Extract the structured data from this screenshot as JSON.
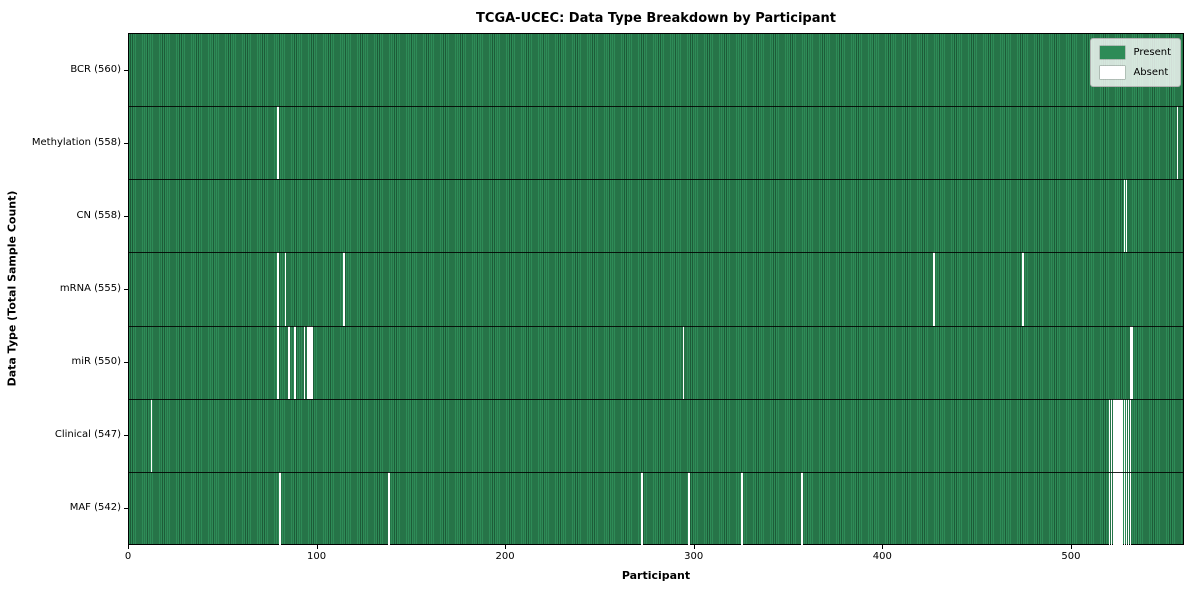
{
  "title": "TCGA-UCEC: Data Type Breakdown by Participant",
  "xlabel": "Participant",
  "ylabel": "Data Type (Total Sample Count)",
  "legend": [
    {
      "label": "Present",
      "color": "#2e8b57"
    },
    {
      "label": "Absent",
      "color": "#ffffff"
    }
  ],
  "chart_data": {
    "type": "heatmap",
    "title": "TCGA-UCEC: Data Type Breakdown by Participant",
    "xlabel": "Participant",
    "ylabel": "Data Type (Total Sample Count)",
    "legend_position": "upper right",
    "grid": false,
    "n_participants": 560,
    "x_ticks": [
      0,
      100,
      200,
      300,
      400,
      500
    ],
    "x_range": [
      0,
      560
    ],
    "colors": {
      "present": "#2e8b57",
      "present_edge": "#1d5c38",
      "absent": "#ffffff"
    },
    "categories": [
      "BCR (560)",
      "Methylation (558)",
      "CN (558)",
      "mRNA (555)",
      "miR (550)",
      "Clinical (547)",
      "MAF (542)"
    ],
    "rows": [
      {
        "label": "BCR (560)",
        "data_type": "BCR",
        "present_count": 560,
        "absent_participants": []
      },
      {
        "label": "Methylation (558)",
        "data_type": "Methylation",
        "present_count": 558,
        "absent_participants": [
          79,
          556
        ]
      },
      {
        "label": "CN (558)",
        "data_type": "CN",
        "present_count": 558,
        "absent_participants": [
          528,
          529
        ]
      },
      {
        "label": "mRNA (555)",
        "data_type": "mRNA",
        "present_count": 555,
        "absent_participants": [
          79,
          83,
          114,
          427,
          474
        ]
      },
      {
        "label": "miR (550)",
        "data_type": "miR",
        "present_count": 550,
        "absent_participants": [
          79,
          85,
          88,
          93,
          95,
          96,
          97,
          294,
          531,
          532
        ]
      },
      {
        "label": "Clinical (547)",
        "data_type": "Clinical",
        "present_count": 547,
        "absent_participants": [
          12,
          520,
          521,
          522,
          523,
          524,
          525,
          526,
          527,
          528,
          529,
          530,
          531
        ]
      },
      {
        "label": "MAF (542)",
        "data_type": "MAF",
        "present_count": 542,
        "absent_participants": [
          80,
          138,
          272,
          297,
          325,
          357,
          520,
          521,
          522,
          523,
          524,
          525,
          526,
          527,
          528,
          529,
          530,
          531
        ]
      }
    ]
  }
}
